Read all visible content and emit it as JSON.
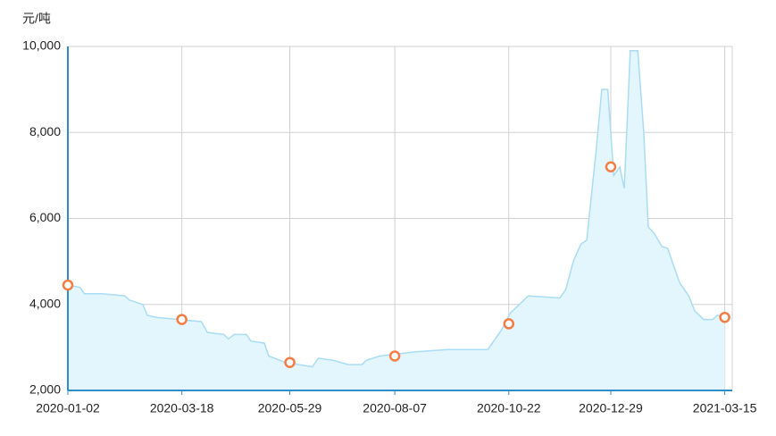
{
  "chart_data": {
    "type": "area",
    "y_label": "元/吨",
    "x": [
      "2020-01-02",
      "2020-01-10",
      "2020-01-13",
      "2020-01-25",
      "2020-02-09",
      "2020-02-12",
      "2020-02-21",
      "2020-02-24",
      "2020-03-01",
      "2020-03-16",
      "2020-03-31",
      "2020-04-04",
      "2020-04-15",
      "2020-04-18",
      "2020-04-22",
      "2020-04-30",
      "2020-05-03",
      "2020-05-12",
      "2020-05-15",
      "2020-05-26",
      "2020-06-13",
      "2020-06-17",
      "2020-06-27",
      "2020-07-07",
      "2020-07-16",
      "2020-07-19",
      "2020-07-28",
      "2020-08-09",
      "2020-08-21",
      "2020-09-11",
      "2020-10-08",
      "2020-10-11",
      "2020-10-17",
      "2020-10-23",
      "2020-11-01",
      "2020-11-04",
      "2020-11-25",
      "2020-11-29",
      "2020-12-04",
      "2020-12-09",
      "2020-12-13",
      "2020-12-16",
      "2020-12-19",
      "2020-12-23",
      "2020-12-27",
      "2020-12-31",
      "2021-01-04",
      "2021-01-07",
      "2021-01-11",
      "2021-01-16",
      "2021-01-20",
      "2021-01-23",
      "2021-01-27",
      "2021-02-01",
      "2021-02-05",
      "2021-02-08",
      "2021-02-13",
      "2021-02-19",
      "2021-02-23",
      "2021-03-01",
      "2021-03-07",
      "2021-03-10",
      "2021-03-15"
    ],
    "values": [
      4450,
      4400,
      4250,
      4250,
      4200,
      4100,
      4000,
      3750,
      3700,
      3650,
      3600,
      3350,
      3300,
      3200,
      3300,
      3300,
      3150,
      3100,
      2800,
      2650,
      2550,
      2750,
      2700,
      2600,
      2600,
      2700,
      2800,
      2850,
      2900,
      2950,
      2950,
      3100,
      3400,
      3800,
      4100,
      4200,
      4150,
      4350,
      5000,
      5400,
      5500,
      6500,
      7500,
      9000,
      9000,
      7000,
      7200,
      6700,
      9900,
      9900,
      8000,
      5800,
      5650,
      5350,
      5300,
      5000,
      4500,
      4200,
      3850,
      3650,
      3650,
      3750,
      3700
    ],
    "line_color": "#a9dcf5",
    "fill_color": "#e3f5fd",
    "markers": {
      "x": [
        "2020-01-02",
        "2020-03-18",
        "2020-05-29",
        "2020-08-07",
        "2020-10-22",
        "2020-12-29",
        "2021-03-15"
      ],
      "values": [
        4450,
        3650,
        2650,
        2800,
        3550,
        7200,
        3700
      ],
      "color": "#f47d45"
    },
    "axis_color": "#2e8fc8",
    "xlim": [
      "2020-01-02",
      "2021-03-20"
    ],
    "xticks": [
      "2020-01-02",
      "2020-03-18",
      "2020-05-29",
      "2020-08-07",
      "2020-10-22",
      "2020-12-29",
      "2021-03-15"
    ],
    "ylim": [
      2000,
      10000
    ],
    "yticks": [
      {
        "value": 2000,
        "label": "2,000"
      },
      {
        "value": 4000,
        "label": "4,000"
      },
      {
        "value": 6000,
        "label": "6,000"
      },
      {
        "value": 8000,
        "label": "8,000"
      },
      {
        "value": 10000,
        "label": "10,000"
      }
    ],
    "grid": true
  }
}
